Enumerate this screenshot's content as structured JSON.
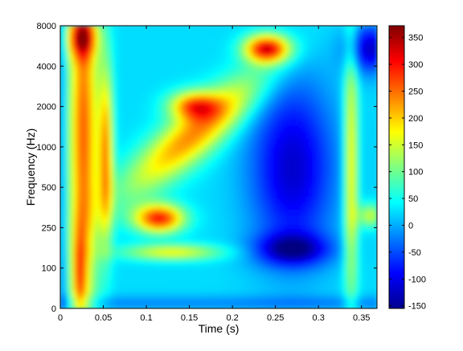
{
  "chart_data": {
    "type": "heatmap",
    "title": "",
    "xlabel": "Time (s)",
    "ylabel": "Frequency (Hz)",
    "x_ticks": [
      "0",
      "0.05",
      "0.1",
      "0.15",
      "0.2",
      "0.25",
      "0.3",
      "0.35"
    ],
    "x_tick_values": [
      0,
      0.05,
      0.1,
      0.15,
      0.2,
      0.25,
      0.3,
      0.35
    ],
    "xlim": [
      0,
      0.368
    ],
    "y_ticks": [
      "0",
      "100",
      "250",
      "500",
      "1000",
      "2000",
      "4000",
      "8000"
    ],
    "y_tick_values": [
      0,
      100,
      250,
      500,
      1000,
      2000,
      4000,
      8000
    ],
    "ylim": [
      0,
      8000
    ],
    "colorbar": {
      "ticks": [
        "-150",
        "-100",
        "-50",
        "0",
        "50",
        "100",
        "150",
        "200",
        "250",
        "300",
        "350"
      ],
      "tick_values": [
        -150,
        -100,
        -50,
        0,
        50,
        100,
        150,
        200,
        250,
        300,
        350
      ],
      "range": [
        -155,
        372
      ],
      "colormap": "jet"
    },
    "features": [
      {
        "t0": 0.005,
        "t1": 0.06,
        "f_frac": 0.55,
        "value": 260
      },
      {
        "t0": 0.05,
        "t1": 0.13,
        "f_frac": 0.45,
        "value": 280
      },
      {
        "t0": 0.1,
        "t1": 0.17,
        "f_frac": 0.32,
        "value": 330
      },
      {
        "t0": 0.12,
        "t1": 0.2,
        "f_frac": 0.73,
        "value": 330
      },
      {
        "t0": 0.22,
        "t1": 0.27,
        "f_frac": 0.92,
        "value": 320
      },
      {
        "t0": 0.2,
        "t1": 0.33,
        "f_frac": 0.2,
        "value": -130
      },
      {
        "t0": 0.34,
        "t1": 0.368,
        "f_frac": 0.92,
        "value": -110
      }
    ]
  }
}
